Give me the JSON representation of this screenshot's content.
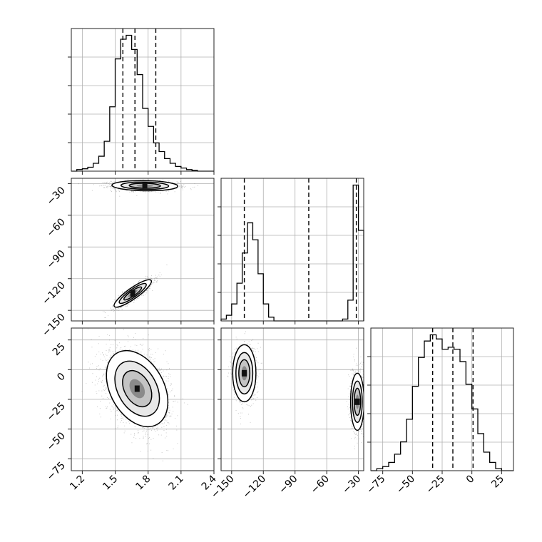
{
  "chart_data": [
    {
      "type": "histogram",
      "panel": "param1-marginal",
      "grid": true,
      "x_range": [
        1.1,
        2.4
      ],
      "x_ticks": [
        1.2,
        1.5,
        1.8,
        2.1,
        2.4
      ],
      "x_tick_labels": [
        "1.2",
        "1.5",
        "1.8",
        "2.1",
        "2.4"
      ],
      "quantiles": [
        1.57,
        1.68,
        1.87
      ],
      "bins": [
        1.1,
        1.15,
        1.2,
        1.25,
        1.3,
        1.35,
        1.4,
        1.45,
        1.5,
        1.55,
        1.6,
        1.65,
        1.7,
        1.75,
        1.8,
        1.85,
        1.9,
        1.95,
        2.0,
        2.05,
        2.1,
        2.15,
        2.2,
        2.25,
        2.3,
        2.35,
        2.4
      ],
      "counts": [
        0,
        2,
        3,
        5,
        10,
        19,
        38,
        82,
        143,
        168,
        173,
        155,
        123,
        80,
        57,
        36,
        25,
        16,
        10,
        6,
        4,
        2,
        1,
        0,
        0,
        0
      ]
    },
    {
      "type": "histogram",
      "panel": "param2-marginal",
      "grid": true,
      "x_range": [
        -160,
        -25
      ],
      "quantiles": [
        -138,
        -77,
        -32
      ],
      "bins": [
        -160,
        -155,
        -150,
        -145,
        -140,
        -135,
        -130,
        -125,
        -120,
        -115,
        -110,
        -105,
        -100,
        -95,
        -90,
        -85,
        -80,
        -75,
        -70,
        -65,
        -60,
        -55,
        -50,
        -45,
        -40,
        -35,
        -30,
        -25
      ],
      "counts": [
        1,
        3,
        9,
        20,
        36,
        52,
        43,
        25,
        9,
        2,
        0,
        0,
        0,
        0,
        0,
        0,
        0,
        0,
        0,
        0,
        0,
        0,
        0,
        1,
        11,
        72,
        48
      ]
    },
    {
      "type": "histogram",
      "panel": "param3-marginal",
      "grid": true,
      "x_range": [
        -85,
        35
      ],
      "x_ticks": [
        -75,
        -50,
        -25,
        0,
        25
      ],
      "x_tick_labels": [
        "−75",
        "−50",
        "−25",
        "0",
        "25"
      ],
      "quantiles": [
        -33,
        -16,
        1
      ],
      "bins": [
        -85,
        -80,
        -75,
        -70,
        -65,
        -60,
        -55,
        -50,
        -45,
        -40,
        -35,
        -30,
        -25,
        -20,
        -15,
        -10,
        -5,
        0,
        5,
        10,
        15,
        20,
        25,
        30,
        35
      ],
      "counts": [
        0,
        1,
        2,
        4,
        8,
        14,
        25,
        41,
        55,
        63,
        66,
        64,
        59,
        60,
        59,
        53,
        42,
        30,
        18,
        9,
        4,
        1,
        0,
        0
      ]
    },
    {
      "type": "scatter",
      "panel": "param1-vs-param2",
      "grid": true,
      "x_range": [
        1.1,
        2.4
      ],
      "y_range": [
        -160,
        -25
      ],
      "y_ticks": [
        -30,
        -60,
        -90,
        -120,
        -150
      ],
      "y_tick_labels": [
        "−30",
        "−60",
        "−90",
        "−120",
        "−150"
      ],
      "clusters": [
        {
          "x_mean": 1.77,
          "y_mean": -32,
          "x_sd": 0.15,
          "y_sd": 2.4,
          "corr": -0.1,
          "n": 1400
        },
        {
          "x_mean": 1.66,
          "y_mean": -134,
          "x_sd": 0.085,
          "y_sd": 6.5,
          "corr": 0.88,
          "n": 1100
        }
      ]
    },
    {
      "type": "scatter",
      "panel": "param1-vs-param3",
      "grid": true,
      "x_range": [
        1.1,
        2.4
      ],
      "y_range": [
        -85,
        35
      ],
      "x_ticks": [
        1.2,
        1.5,
        1.8,
        2.1,
        2.4
      ],
      "x_tick_labels": [
        "1.2",
        "1.5",
        "1.8",
        "2.1",
        "2.4"
      ],
      "y_ticks": [
        25,
        0,
        -25,
        -50,
        -75
      ],
      "y_tick_labels": [
        "25",
        "0",
        "−25",
        "−50",
        "−75"
      ],
      "clusters": [
        {
          "x_mean": 1.7,
          "y_mean": -16,
          "x_sd": 0.14,
          "y_sd": 16,
          "corr": -0.35,
          "n": 2500
        }
      ]
    },
    {
      "type": "scatter",
      "panel": "param2-vs-param3",
      "grid": true,
      "x_range": [
        -160,
        -25
      ],
      "y_range": [
        -85,
        35
      ],
      "x_ticks": [
        -150,
        -120,
        -90,
        -60,
        -30
      ],
      "x_tick_labels": [
        "−150",
        "−120",
        "−90",
        "−60",
        "−30"
      ],
      "clusters": [
        {
          "x_mean": -138,
          "y_mean": -3,
          "x_sd": 5.5,
          "y_sd": 12,
          "corr": 0.0,
          "n": 1100
        },
        {
          "x_mean": -31,
          "y_mean": -27,
          "x_sd": 3.2,
          "y_sd": 12,
          "corr": 0.0,
          "n": 1400
        }
      ]
    }
  ]
}
